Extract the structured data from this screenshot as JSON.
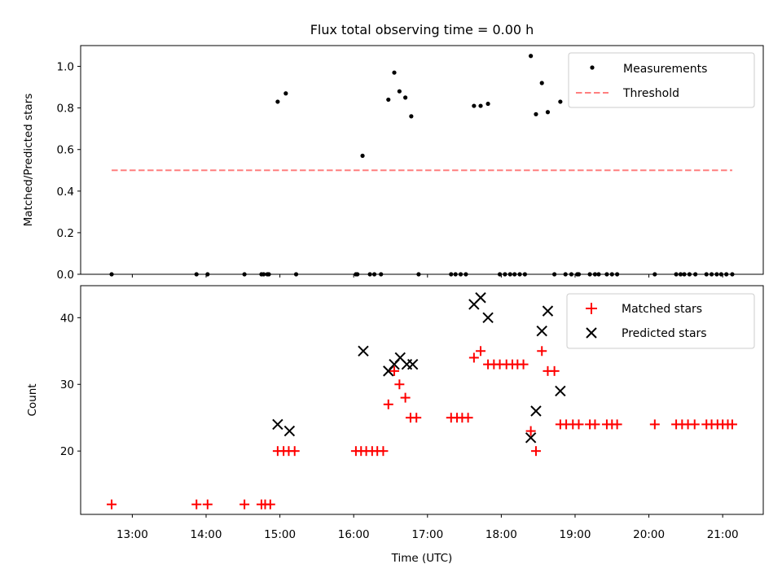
{
  "chart_data": [
    {
      "type": "scatter",
      "title": "Flux total observing time = 0.00 h",
      "xlabel": "",
      "ylabel": "Matched/Predicted stars",
      "xlim": [
        12.3,
        21.55
      ],
      "ylim": [
        0.0,
        1.1
      ],
      "yticks": [
        "0.0",
        "0.2",
        "0.4",
        "0.6",
        "0.8",
        "1.0"
      ],
      "ytick_values": [
        0.0,
        0.2,
        0.4,
        0.6,
        0.8,
        1.0
      ],
      "legend_position": "top-right",
      "series": [
        {
          "name": "Measurements",
          "marker": "dot",
          "color": "#000000",
          "x": [
            12.72,
            13.87,
            14.02,
            14.52,
            14.75,
            14.78,
            14.83,
            14.85,
            14.97,
            15.08,
            15.22,
            16.03,
            16.05,
            16.12,
            16.22,
            16.28,
            16.37,
            16.47,
            16.55,
            16.62,
            16.7,
            16.78,
            16.88,
            17.32,
            17.38,
            17.45,
            17.52,
            17.63,
            17.72,
            17.82,
            17.98,
            18.05,
            18.12,
            18.18,
            18.25,
            18.32,
            18.4,
            18.47,
            18.55,
            18.63,
            18.72,
            18.8,
            18.87,
            18.95,
            19.03,
            19.05,
            19.2,
            19.27,
            19.32,
            19.43,
            19.5,
            19.57,
            20.08,
            20.37,
            20.43,
            20.48,
            20.55,
            20.63,
            20.78,
            20.85,
            20.92,
            20.98,
            21.05,
            21.13
          ],
          "y": [
            0.0,
            0.0,
            0.0,
            0.0,
            0.0,
            0.0,
            0.0,
            0.0,
            0.83,
            0.87,
            0.0,
            0.0,
            0.0,
            0.57,
            0.0,
            0.0,
            0.0,
            0.84,
            0.97,
            0.88,
            0.85,
            0.76,
            0.0,
            0.0,
            0.0,
            0.0,
            0.0,
            0.81,
            0.81,
            0.82,
            0.0,
            0.0,
            0.0,
            0.0,
            0.0,
            0.0,
            1.05,
            0.77,
            0.92,
            0.78,
            0.0,
            0.83,
            0.0,
            0.0,
            0.0,
            0.0,
            0.0,
            0.0,
            0.0,
            0.0,
            0.0,
            0.0,
            0.0,
            0.0,
            0.0,
            0.0,
            0.0,
            0.0,
            0.0,
            0.0,
            0.0,
            0.0,
            0.0,
            0.0
          ]
        },
        {
          "name": "Threshold",
          "marker": "dashed-line",
          "color": "#ff7f7f",
          "x": [
            12.72,
            21.13
          ],
          "y": [
            0.5,
            0.5
          ]
        }
      ]
    },
    {
      "type": "scatter",
      "title": "",
      "xlabel": "Time (UTC)",
      "ylabel": "Count",
      "xlim": [
        12.3,
        21.55
      ],
      "ylim": [
        10.5,
        44.8
      ],
      "xticks": [
        "13:00",
        "14:00",
        "15:00",
        "16:00",
        "17:00",
        "18:00",
        "19:00",
        "20:00",
        "21:00"
      ],
      "xtick_values": [
        13,
        14,
        15,
        16,
        17,
        18,
        19,
        20,
        21
      ],
      "yticks": [
        "20",
        "30",
        "40"
      ],
      "ytick_values": [
        20,
        30,
        40
      ],
      "legend_position": "top-right",
      "series": [
        {
          "name": "Matched stars",
          "marker": "plus",
          "color": "#ff0000",
          "x": [
            12.72,
            13.87,
            14.02,
            14.52,
            14.75,
            14.8,
            14.87,
            14.97,
            15.05,
            15.12,
            15.2,
            16.03,
            16.1,
            16.17,
            16.25,
            16.32,
            16.4,
            16.47,
            16.55,
            16.62,
            16.7,
            16.77,
            16.85,
            17.32,
            17.4,
            17.47,
            17.55,
            17.63,
            17.72,
            17.82,
            17.9,
            17.98,
            18.07,
            18.15,
            18.22,
            18.3,
            18.4,
            18.47,
            18.55,
            18.63,
            18.72,
            18.8,
            18.88,
            18.97,
            19.05,
            19.2,
            19.27,
            19.43,
            19.5,
            19.57,
            20.08,
            20.37,
            20.45,
            20.53,
            20.62,
            20.78,
            20.85,
            20.93,
            21.0,
            21.07,
            21.13
          ],
          "y": [
            12,
            12,
            12,
            12,
            12,
            12,
            12,
            20,
            20,
            20,
            20,
            20,
            20,
            20,
            20,
            20,
            20,
            27,
            32,
            30,
            28,
            25,
            25,
            25,
            25,
            25,
            25,
            34,
            35,
            33,
            33,
            33,
            33,
            33,
            33,
            33,
            23,
            20,
            35,
            32,
            32,
            24,
            24,
            24,
            24,
            24,
            24,
            24,
            24,
            24,
            24,
            24,
            24,
            24,
            24,
            24,
            24,
            24,
            24,
            24,
            24
          ]
        },
        {
          "name": "Predicted stars",
          "marker": "x",
          "color": "#000000",
          "x": [
            14.97,
            15.13,
            16.13,
            16.47,
            16.55,
            16.63,
            16.72,
            16.8,
            17.63,
            17.72,
            17.82,
            18.4,
            18.47,
            18.55,
            18.63,
            18.8
          ],
          "y": [
            24,
            23,
            35,
            32,
            33,
            34,
            33,
            33,
            42,
            43,
            40,
            22,
            26,
            38,
            41,
            29
          ]
        }
      ]
    }
  ]
}
